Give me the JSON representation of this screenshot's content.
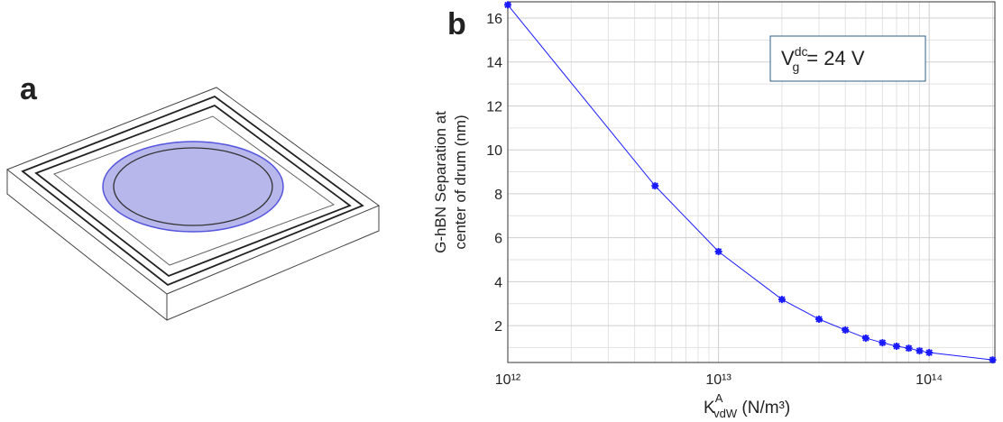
{
  "panel_labels": {
    "a": "a",
    "b": "b"
  },
  "chart_data": {
    "type": "line",
    "xlabel": {
      "main": "K",
      "sup": "A",
      "sub": "vdW",
      "unit": " (N/m³)"
    },
    "ylabel": [
      "G-hBN Separation at",
      "center of drum  (nm)"
    ],
    "annotation": {
      "main": "V",
      "sup": "dc",
      "sub": "g",
      "rest": "= 24 V"
    },
    "xscale": "log",
    "x": [
      1000000000000.0,
      5000000000000.0,
      10000000000000.0,
      20000000000000.0,
      30000000000000.0,
      40000000000000.0,
      50000000000000.0,
      60000000000000.0,
      70000000000000.0,
      80000000000000.0,
      90000000000000.0,
      100000000000000.0,
      200000000000000.0
    ],
    "series": [
      {
        "color": "#1a1aff",
        "values": [
          16.6,
          8.36,
          5.37,
          3.19,
          2.29,
          1.8,
          1.43,
          1.22,
          1.06,
          0.97,
          0.85,
          0.77,
          0.44
        ]
      }
    ],
    "xlim": [
      1000000000000.0,
      205000000000000.0
    ],
    "ylim": [
      0.32,
      16.74
    ],
    "xticks": [
      {
        "value": 1000000000000.0,
        "label": "10¹²"
      },
      {
        "value": 10000000000000.0,
        "label": "10¹³"
      },
      {
        "value": 100000000000000.0,
        "label": "10¹⁴"
      }
    ],
    "yticks": [
      2,
      4,
      6,
      8,
      10,
      12,
      14,
      16
    ],
    "xgrid_minor": [
      2000000000000.0,
      3000000000000.0,
      4000000000000.0,
      5000000000000.0,
      6000000000000.0,
      7000000000000.0,
      8000000000000.0,
      9000000000000.0,
      20000000000000.0,
      30000000000000.0,
      40000000000000.0,
      50000000000000.0,
      60000000000000.0,
      70000000000000.0,
      80000000000000.0,
      90000000000000.0,
      200000000000000.0
    ],
    "ygrid_minor": [
      1,
      3,
      5,
      7,
      9,
      11,
      13,
      15
    ],
    "grid": true
  }
}
